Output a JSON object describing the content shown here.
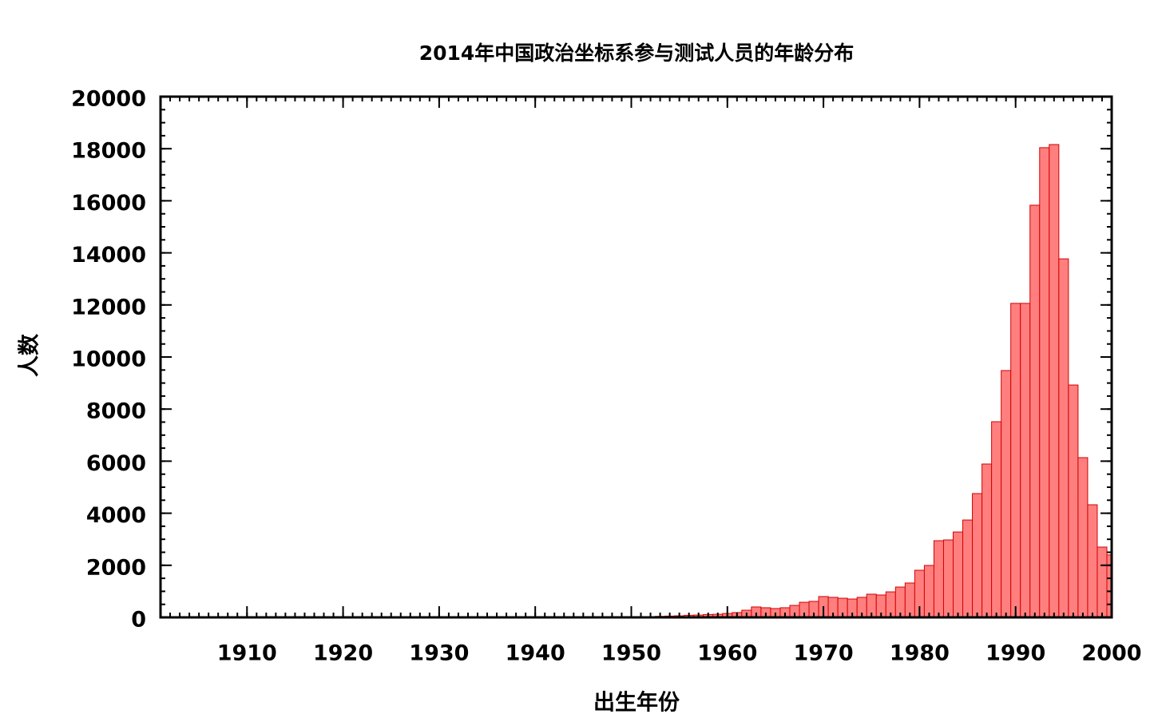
{
  "chart_data": {
    "type": "histogram",
    "title": "2014年中国政治坐标系参与测试人员的年龄分布",
    "x_label": "出生年份",
    "y_label": "人数",
    "bins": [
      1951.5,
      1952.5,
      1953.5,
      1954.5,
      1955.5,
      1956.5,
      1957.5,
      1958.5,
      1959.5,
      1960.5,
      1961.5,
      1962.5,
      1963.5,
      1964.5,
      1965.5,
      1966.5,
      1967.5,
      1968.5,
      1969.5,
      1970.5,
      1971.5,
      1972.5,
      1973.5,
      1974.5,
      1975.5,
      1976.5,
      1977.5,
      1978.5,
      1979.5,
      1980.5,
      1981.5,
      1982.5,
      1983.5,
      1984.5,
      1985.5,
      1986.5,
      1987.5,
      1988.5,
      1989.5,
      1990.5,
      1991.5,
      1992.5,
      1993.5,
      1994.5,
      1995.5,
      1996.5,
      1997.5,
      1998.5,
      1999.5,
      2000.5
    ],
    "values": [
      30,
      40,
      50,
      60,
      80,
      90,
      110,
      120,
      150,
      185,
      275,
      400,
      370,
      340,
      370,
      460,
      580,
      615,
      800,
      770,
      735,
      705,
      770,
      890,
      860,
      980,
      1165,
      1320,
      1810,
      1995,
      2945,
      2975,
      3280,
      3740,
      4755,
      5890,
      7515,
      9480,
      12060,
      12060,
      15830,
      18040,
      18160,
      13770,
      8925,
      6135,
      4325,
      2700,
      2400
    ],
    "color": "#ff7f7f",
    "edge_color": "#d40000",
    "xlim": [
      1901,
      2000
    ],
    "ylim": [
      0,
      20000
    ],
    "xticks": [
      1910,
      1920,
      1930,
      1940,
      1950,
      1960,
      1970,
      1980,
      1990,
      2000
    ],
    "yticks": [
      0,
      2000,
      4000,
      6000,
      8000,
      10000,
      12000,
      14000,
      16000,
      18000,
      20000
    ],
    "minor_tick_step": {
      "x": 1,
      "y": 500
    }
  }
}
